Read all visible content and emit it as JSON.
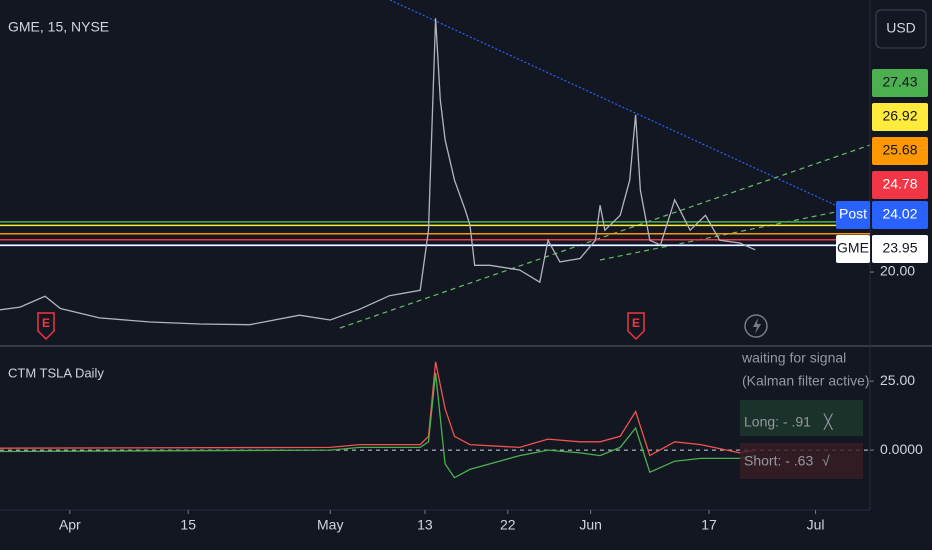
{
  "chart_data": [
    {
      "type": "line",
      "title": "GME, 15, NYSE",
      "currency": "USD",
      "x": [
        -5.9,
        -4.2,
        -2.1,
        -0.8,
        2.5,
        6.8,
        11.0,
        15.2,
        19.4,
        22.0,
        24.5,
        27.0,
        29.6,
        30.3,
        30.9,
        31.3,
        31.7,
        32.5,
        33.4,
        33.8,
        34.2,
        35.5,
        38.0,
        39.7,
        40.4,
        41.4,
        43.1,
        44.4,
        44.8,
        45.2,
        46.5,
        47.3,
        47.8,
        48.2,
        49.0,
        49.9,
        51.1,
        52.4,
        53.7,
        54.9,
        56.6,
        57.9
      ],
      "series": [
        {
          "name": "GME",
          "color": "#b2b5be",
          "values": [
            14.4,
            14.8,
            16.4,
            14.6,
            13.2,
            12.6,
            12.3,
            12.2,
            13.6,
            12.9,
            14.5,
            16.5,
            17.3,
            26.2,
            57.6,
            45.5,
            39.6,
            33.6,
            29.2,
            27.0,
            21.0,
            21.0,
            20.3,
            18.5,
            24.7,
            21.5,
            22.0,
            24.7,
            29.9,
            26.2,
            28.4,
            33.6,
            43.3,
            32.1,
            24.7,
            24.0,
            30.7,
            26.2,
            28.4,
            24.7,
            24.3,
            23.3
          ]
        }
      ],
      "price_levels": [
        {
          "value": 27.43,
          "color": "#4caf50"
        },
        {
          "value": 26.92,
          "color": "#ffeb3b"
        },
        {
          "value": 25.68,
          "color": "#ff9800"
        },
        {
          "value": 24.78,
          "color": "#f23645"
        },
        {
          "label": "Post",
          "value": 24.02,
          "color": "#2962ff"
        },
        {
          "label": "GME",
          "value": 23.95,
          "color": "#ffffff"
        }
      ],
      "earnings_markers": [
        "E",
        "E"
      ],
      "xlim": [
        -5.9,
        67.6
      ],
      "ylim": [
        9.19,
        60.3
      ],
      "yticks": [
        {
          "value": 20,
          "label": "20.00"
        }
      ]
    },
    {
      "type": "line",
      "title": "CTM TSLA Daily",
      "x": [
        -5.9,
        22.0,
        24.5,
        29.6,
        30.3,
        30.9,
        31.7,
        32.5,
        33.8,
        38.0,
        40.4,
        43.1,
        44.8,
        46.5,
        47.8,
        49.0,
        51.1,
        53.3,
        56.6,
        57.9
      ],
      "series": [
        {
          "color": "#f05350",
          "values": [
            0.7,
            1,
            2,
            2,
            5,
            32,
            15,
            5,
            2,
            1,
            4,
            3,
            3,
            5,
            14,
            -2,
            3,
            2,
            -1,
            0
          ]
        },
        {
          "color": "#4caf50",
          "values": [
            -0.5,
            0,
            1,
            1,
            3,
            28,
            -5,
            -10,
            -7,
            -2,
            0,
            -1,
            -2,
            1,
            8,
            -8,
            -4,
            -3,
            -3,
            -2
          ]
        }
      ],
      "signal_status": [
        "waiting for signal",
        "(Kalman filter active)"
      ],
      "long": "Long: - .91",
      "long_mark": "╳",
      "short": "Short: - .63",
      "short_mark": "√",
      "xlim": [
        -5.9,
        67.6
      ],
      "ylim": [
        -21.7,
        37.0
      ],
      "yticks": [
        {
          "value": 25,
          "label": "25.00"
        },
        {
          "value": 0,
          "label": "0.0000"
        }
      ],
      "xticks": [
        {
          "value": 0,
          "label": "Apr"
        },
        {
          "value": 10,
          "label": "15"
        },
        {
          "value": 22,
          "label": "May"
        },
        {
          "value": 30,
          "label": "13"
        },
        {
          "value": 37,
          "label": "22"
        },
        {
          "value": 44,
          "label": "Jun"
        },
        {
          "value": 54,
          "label": "17"
        },
        {
          "value": 63,
          "label": "Jul"
        }
      ]
    }
  ]
}
